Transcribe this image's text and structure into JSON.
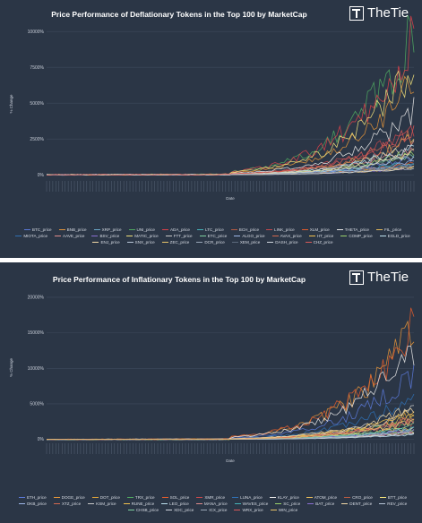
{
  "chart_data": [
    {
      "type": "line",
      "title": "Price Performance of Deflationary Tokens in the Top 100 by MarketCap",
      "logo_text": "TheTie",
      "xlabel": "Date",
      "ylabel": "% Change",
      "ylim": [
        -300,
        10200
      ],
      "yticks": [
        0,
        2500,
        5000,
        7500,
        10000
      ],
      "ytick_labels": [
        "0%",
        "2500%",
        "5000%",
        "7500%",
        "10000%"
      ],
      "grid": true,
      "legend_position": "bottom",
      "x_count": 120,
      "series": [
        {
          "name": "BTC_price",
          "color": "#5a78d6",
          "peak": 1200
        },
        {
          "name": "BNB_price",
          "color": "#e2943a",
          "peak": 6500
        },
        {
          "name": "XRP_price",
          "color": "#6ba7c8",
          "peak": 700
        },
        {
          "name": "UNI_price",
          "color": "#4fa860",
          "peak": 10000
        },
        {
          "name": "ADA_price",
          "color": "#d9414a",
          "peak": 9600
        },
        {
          "name": "LTC_price",
          "color": "#47b3b8",
          "peak": 900
        },
        {
          "name": "BCH_price",
          "color": "#b55a42",
          "peak": 600
        },
        {
          "name": "LINK_price",
          "color": "#c7484c",
          "peak": 3400
        },
        {
          "name": "XLM_price",
          "color": "#e25c2c",
          "peak": 800
        },
        {
          "name": "THETA_price",
          "color": "#e6e6e6",
          "peak": 4500
        },
        {
          "name": "FIL_price",
          "color": "#e3b85a",
          "peak": 2600
        },
        {
          "name": "MIOTA_price",
          "color": "#2f6fb3",
          "peak": 700
        },
        {
          "name": "AAVE_price",
          "color": "#e08c8c",
          "peak": 1800
        },
        {
          "name": "BSV_price",
          "color": "#8a6fd1",
          "peak": 500
        },
        {
          "name": "MATIC_price",
          "color": "#f0e07a",
          "peak": 7800
        },
        {
          "name": "FTT_price",
          "color": "#c9c9c9",
          "peak": 2200
        },
        {
          "name": "ETC_price",
          "color": "#7fd1a0",
          "peak": 1400
        },
        {
          "name": "ALGO_price",
          "color": "#9fb7e8",
          "peak": 900
        },
        {
          "name": "AVAX_price",
          "color": "#d4694f",
          "peak": 2800
        },
        {
          "name": "HT_price",
          "color": "#f2c14e",
          "peak": 600
        },
        {
          "name": "COMP_price",
          "color": "#9bd36c",
          "peak": 1700
        },
        {
          "name": "EGLD_price",
          "color": "#bfe2ef",
          "peak": 2000
        },
        {
          "name": "ENJ_price",
          "color": "#f3d9a8",
          "peak": 1500
        },
        {
          "name": "SNX_price",
          "color": "#b9c7d8",
          "peak": 1300
        },
        {
          "name": "ZEC_price",
          "color": "#e8c46a",
          "peak": 500
        },
        {
          "name": "DCR_price",
          "color": "#9aa7b8",
          "peak": 600
        },
        {
          "name": "XEM_price",
          "color": "#5d6b7e",
          "peak": 700
        },
        {
          "name": "DASH_price",
          "color": "#d0d6de",
          "peak": 500
        },
        {
          "name": "CHZ_price",
          "color": "#d95a5a",
          "peak": 3100
        }
      ]
    },
    {
      "type": "line",
      "title": "Price Performance of Inflationary Tokens in the Top 100 by MarketCap",
      "logo_text": "TheTie",
      "xlabel": "Date",
      "ylabel": "% Change",
      "ylim": [
        -300,
        20500
      ],
      "yticks": [
        0,
        5000,
        10000,
        15000,
        20000
      ],
      "ytick_labels": [
        "0%",
        "5000%",
        "10000%",
        "15000%",
        "20000%"
      ],
      "grid": true,
      "legend_position": "bottom",
      "x_count": 120,
      "series": [
        {
          "name": "ETH_price",
          "color": "#5a78d6",
          "peak": 9400
        },
        {
          "name": "DOGE_price",
          "color": "#e2943a",
          "peak": 15500
        },
        {
          "name": "DOT_price",
          "color": "#d9a13a",
          "peak": 3600
        },
        {
          "name": "TRX_price",
          "color": "#4fa860",
          "peak": 2900
        },
        {
          "name": "SOL_price",
          "color": "#e25c2c",
          "peak": 16300
        },
        {
          "name": "XMR_price",
          "color": "#c7484c",
          "peak": 1200
        },
        {
          "name": "LUNA_price",
          "color": "#2f6fb3",
          "peak": 6200
        },
        {
          "name": "KLAY_price",
          "color": "#e6e6e6",
          "peak": 13300
        },
        {
          "name": "ATOM_price",
          "color": "#e3b85a",
          "peak": 3300
        },
        {
          "name": "CRO_price",
          "color": "#b55a42",
          "peak": 2400
        },
        {
          "name": "BTT_price",
          "color": "#f0e07a",
          "peak": 1800
        },
        {
          "name": "OKB_price",
          "color": "#9fb7e8",
          "peak": 1500
        },
        {
          "name": "XTZ_price",
          "color": "#d4694f",
          "peak": 900
        },
        {
          "name": "KSM_price",
          "color": "#c9c9c9",
          "peak": 4200
        },
        {
          "name": "RUNE_price",
          "color": "#f2c14e",
          "peak": 3900
        },
        {
          "name": "LEO_price",
          "color": "#bfe2ef",
          "peak": 700
        },
        {
          "name": "MANA_price",
          "color": "#e08c8c",
          "peak": 2700
        },
        {
          "name": "WAVES_price",
          "color": "#47b3b8",
          "peak": 1600
        },
        {
          "name": "SC_price",
          "color": "#9bd36c",
          "peak": 1100
        },
        {
          "name": "BAT_price",
          "color": "#8a6fd1",
          "peak": 1300
        },
        {
          "name": "DENT_price",
          "color": "#f3d9a8",
          "peak": 4700
        },
        {
          "name": "REV_price",
          "color": "#b9c7d8",
          "peak": 800
        },
        {
          "name": "CHSB_price",
          "color": "#7fd1a0",
          "peak": 1900
        },
        {
          "name": "XDC_price",
          "color": "#d0d6de",
          "peak": 1000
        },
        {
          "name": "ICX_price",
          "color": "#9aa7b8",
          "peak": 1200
        },
        {
          "name": "WRX_price",
          "color": "#d95a5a",
          "peak": 3000
        },
        {
          "name": "WIN_price",
          "color": "#e8c46a",
          "peak": 2500
        }
      ]
    }
  ]
}
